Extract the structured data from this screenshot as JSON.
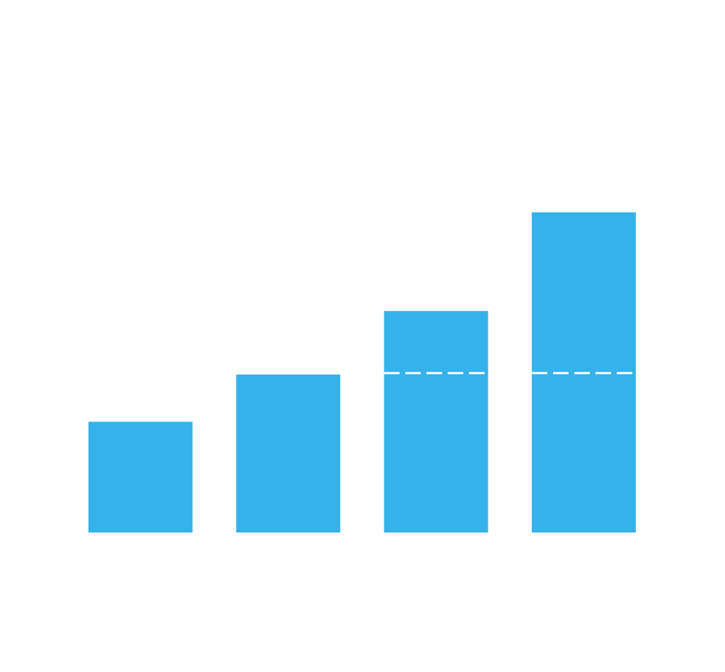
{
  "chart_data": {
    "type": "bar",
    "categories": [
      "",
      "",
      "",
      ""
    ],
    "values": [
      157,
      224,
      314,
      454
    ],
    "ylim": [
      0,
      755
    ],
    "reference_line": {
      "value": 226,
      "style": "dashed",
      "color": "#ffffff"
    },
    "grid": false,
    "legend": "none",
    "bar_color": "#35b2e9",
    "background_color": "#ffffff"
  }
}
